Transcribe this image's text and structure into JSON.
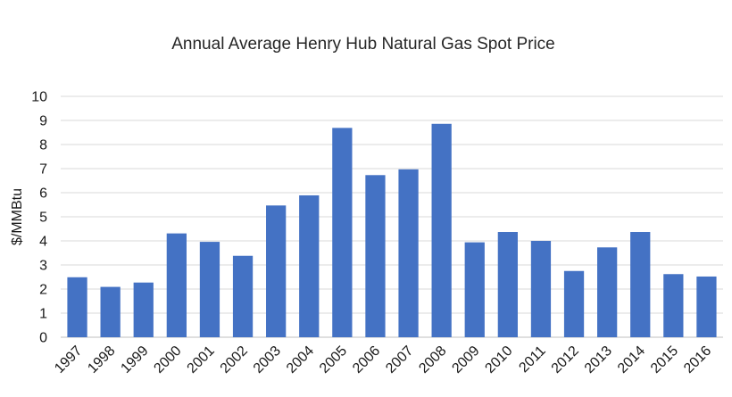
{
  "chart_data": {
    "type": "bar",
    "title": "Annual Average Henry Hub Natural Gas Spot Price",
    "xlabel": "",
    "ylabel": "$/MMBtu",
    "categories": [
      "1997",
      "1998",
      "1999",
      "2000",
      "2001",
      "2002",
      "2003",
      "2004",
      "2005",
      "2006",
      "2007",
      "2008",
      "2009",
      "2010",
      "2011",
      "2012",
      "2013",
      "2014",
      "2015",
      "2016"
    ],
    "values": [
      2.49,
      2.09,
      2.27,
      4.31,
      3.96,
      3.38,
      5.47,
      5.89,
      8.69,
      6.73,
      6.97,
      8.86,
      3.94,
      4.37,
      4.0,
      2.75,
      3.73,
      4.37,
      2.62,
      2.52
    ],
    "yticks": [
      "0",
      "1",
      "2",
      "3",
      "4",
      "5",
      "6",
      "7",
      "8",
      "9",
      "10"
    ],
    "ylim": [
      0,
      10
    ],
    "grid": true,
    "bar_color": "#4472c4",
    "gridline_color": "#d9d9d9",
    "text_color": "#262626"
  }
}
